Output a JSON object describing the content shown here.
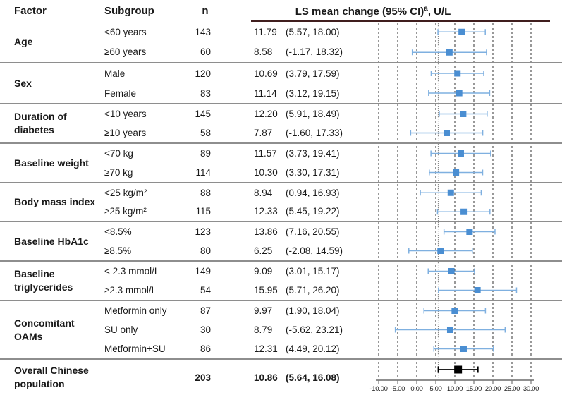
{
  "table": {
    "headers": {
      "factor": "Factor",
      "subgroup": "Subgroup",
      "n": "n"
    },
    "effect_header": {
      "main": "LS mean change (95% CI)",
      "sup": "a",
      "rest": ", U/L"
    }
  },
  "chart_data": {
    "type": "forest",
    "title": "LS mean change (95% CI)a, U/L",
    "x_axis": {
      "min": -10,
      "max": 30,
      "ticks": [
        -10,
        -5,
        0,
        5,
        10,
        15,
        20,
        25,
        30
      ],
      "tick_labels": [
        "-10.00",
        "-5.00",
        "0.00",
        "5.00",
        "10.00",
        "15.00",
        "20.00",
        "25.00",
        "30.00"
      ]
    },
    "reference_line": 5.64,
    "groups": [
      {
        "factor": "Age",
        "rows": [
          {
            "subgroup": "<60 years",
            "n": "143",
            "mean": 11.79,
            "lo": 5.57,
            "hi": 18.0,
            "mean_text": "11.79",
            "ci_text": "(5.57, 18.00)"
          },
          {
            "subgroup": "≥60 years",
            "n": "60",
            "mean": 8.58,
            "lo": -1.17,
            "hi": 18.32,
            "mean_text": "8.58",
            "ci_text": "(-1.17, 18.32)"
          }
        ]
      },
      {
        "factor": "Sex",
        "rows": [
          {
            "subgroup": "Male",
            "n": "120",
            "mean": 10.69,
            "lo": 3.79,
            "hi": 17.59,
            "mean_text": "10.69",
            "ci_text": "(3.79, 17.59)"
          },
          {
            "subgroup": "Female",
            "n": "83",
            "mean": 11.14,
            "lo": 3.12,
            "hi": 19.15,
            "mean_text": "11.14",
            "ci_text": "(3.12, 19.15)"
          }
        ]
      },
      {
        "factor": "Duration of diabetes",
        "rows": [
          {
            "subgroup": "<10 years",
            "n": "145",
            "mean": 12.2,
            "lo": 5.91,
            "hi": 18.49,
            "mean_text": "12.20",
            "ci_text": "(5.91, 18.49)"
          },
          {
            "subgroup": "≥10 years",
            "n": "58",
            "mean": 7.87,
            "lo": -1.6,
            "hi": 17.33,
            "mean_text": "7.87",
            "ci_text": "(-1.60, 17.33)"
          }
        ]
      },
      {
        "factor": "Baseline weight",
        "rows": [
          {
            "subgroup": "<70 kg",
            "n": "89",
            "mean": 11.57,
            "lo": 3.73,
            "hi": 19.41,
            "mean_text": "11.57",
            "ci_text": "(3.73, 19.41)"
          },
          {
            "subgroup": "≥70 kg",
            "n": "114",
            "mean": 10.3,
            "lo": 3.3,
            "hi": 17.31,
            "mean_text": "10.30",
            "ci_text": "(3.30, 17.31)"
          }
        ]
      },
      {
        "factor": "Body mass index",
        "rows": [
          {
            "subgroup": "<25 kg/m²",
            "n": "88",
            "mean": 8.94,
            "lo": 0.94,
            "hi": 16.93,
            "mean_text": "8.94",
            "ci_text": "(0.94, 16.93)"
          },
          {
            "subgroup": "≥25 kg/m²",
            "n": "115",
            "mean": 12.33,
            "lo": 5.45,
            "hi": 19.22,
            "mean_text": "12.33",
            "ci_text": "(5.45, 19.22)"
          }
        ]
      },
      {
        "factor": "Baseline HbA1c",
        "rows": [
          {
            "subgroup": "<8.5%",
            "n": "123",
            "mean": 13.86,
            "lo": 7.16,
            "hi": 20.55,
            "mean_text": "13.86",
            "ci_text": "(7.16, 20.55)"
          },
          {
            "subgroup": "≥8.5%",
            "n": "80",
            "mean": 6.25,
            "lo": -2.08,
            "hi": 14.59,
            "mean_text": "6.25",
            "ci_text": "(-2.08, 14.59)"
          }
        ]
      },
      {
        "factor": "Baseline triglycerides",
        "rows": [
          {
            "subgroup": "< 2.3 mmol/L",
            "n": "149",
            "mean": 9.09,
            "lo": 3.01,
            "hi": 15.17,
            "mean_text": "9.09",
            "ci_text": "(3.01, 15.17)"
          },
          {
            "subgroup": "≥2.3 mmol/L",
            "n": "54",
            "mean": 15.95,
            "lo": 5.71,
            "hi": 26.2,
            "mean_text": "15.95",
            "ci_text": "(5.71, 26.20)"
          }
        ]
      },
      {
        "factor": "Concomitant OAMs",
        "rows": [
          {
            "subgroup": "Metformin only",
            "n": "87",
            "mean": 9.97,
            "lo": 1.9,
            "hi": 18.04,
            "mean_text": "9.97",
            "ci_text": "(1.90, 18.04)"
          },
          {
            "subgroup": "SU only",
            "n": "30",
            "mean": 8.79,
            "lo": -5.62,
            "hi": 23.21,
            "mean_text": "8.79",
            "ci_text": "(-5.62, 23.21)"
          },
          {
            "subgroup": "Metformin+SU",
            "n": "86",
            "mean": 12.31,
            "lo": 4.49,
            "hi": 20.12,
            "mean_text": "12.31",
            "ci_text": "(4.49, 20.12)"
          }
        ]
      }
    ],
    "overall": {
      "factor": "Overall Chinese population",
      "n": "203",
      "mean": 10.86,
      "lo": 5.64,
      "hi": 16.08,
      "mean_text": "10.86",
      "ci_text": "(5.64, 16.08)"
    }
  },
  "colors": {
    "marker_blue": "#4a8ed2",
    "ci_blue": "#7fb0e0",
    "overall_black": "#000000",
    "header_underline": "#401e1e",
    "separator": "#8e8e8e",
    "gridline": "#555555",
    "reference": "#8a8a8a",
    "axis": "#8f8f8f",
    "text": "#1a1a1a"
  }
}
